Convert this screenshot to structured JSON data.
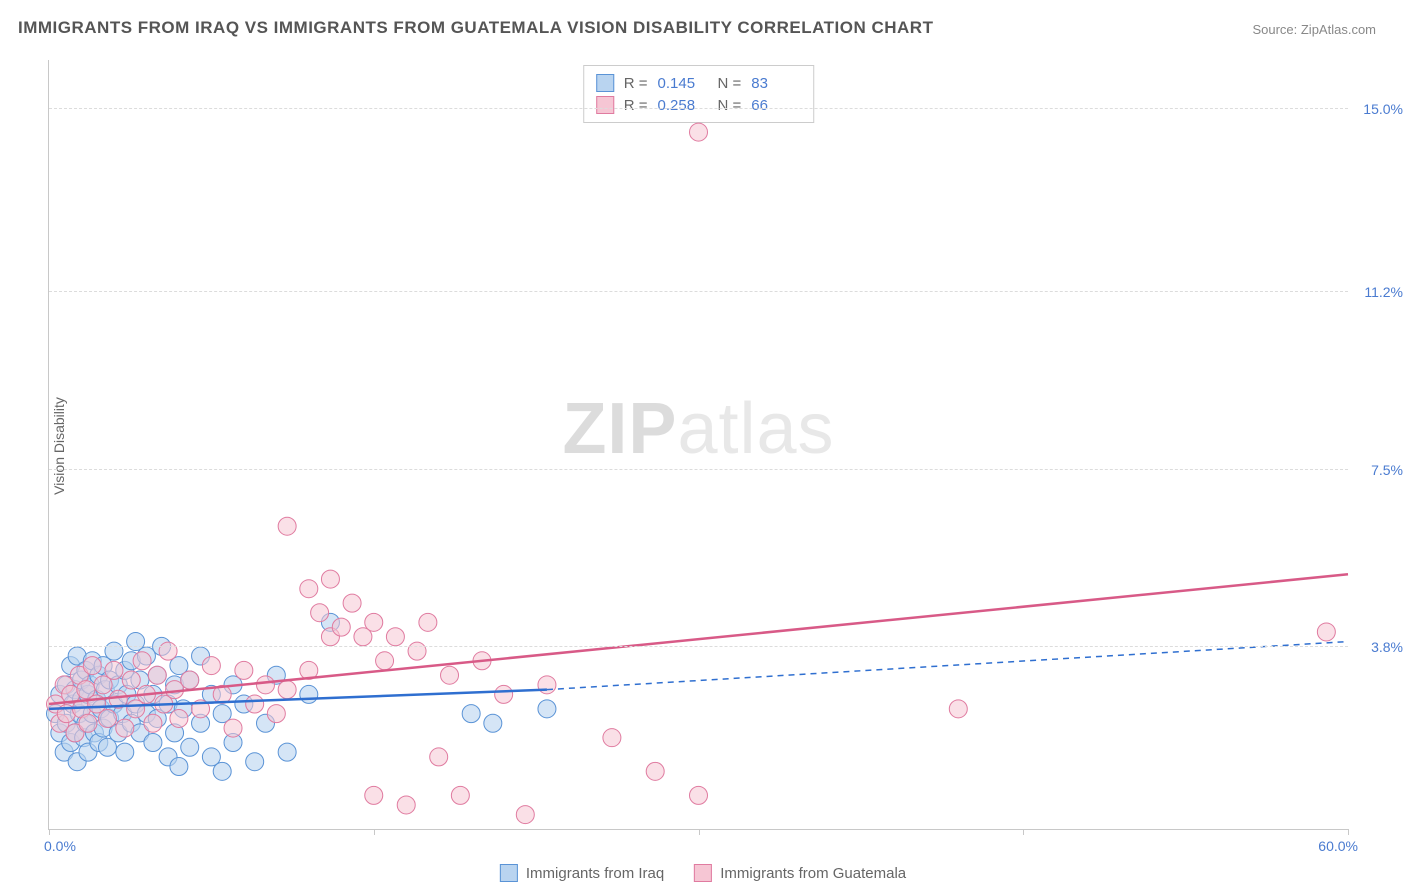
{
  "title": "IMMIGRANTS FROM IRAQ VS IMMIGRANTS FROM GUATEMALA VISION DISABILITY CORRELATION CHART",
  "source": "Source: ZipAtlas.com",
  "watermark_bold": "ZIP",
  "watermark_light": "atlas",
  "y_axis_label": "Vision Disability",
  "plot": {
    "x_min": 0.0,
    "x_max": 60.0,
    "y_min": 0.0,
    "y_max": 16.0,
    "x_tick_labels": {
      "left": "0.0%",
      "right": "60.0%"
    },
    "x_tick_positions": [
      0,
      15,
      30,
      45,
      60
    ],
    "y_gridlines": [
      {
        "value": 3.8,
        "label": "3.8%"
      },
      {
        "value": 7.5,
        "label": "7.5%"
      },
      {
        "value": 11.2,
        "label": "11.2%"
      },
      {
        "value": 15.0,
        "label": "15.0%"
      }
    ],
    "grid_color": "#dcdcdc",
    "background_color": "#ffffff"
  },
  "series": [
    {
      "name": "Immigrants from Iraq",
      "fill": "#b9d4f0",
      "stroke": "#5a93d6",
      "line_color": "#2f6fd0",
      "marker_radius": 9,
      "marker_opacity": 0.6,
      "R": "0.145",
      "N": "83",
      "trend": {
        "x1": 0,
        "y1": 2.5,
        "x2_solid": 23,
        "y2_solid": 2.9,
        "x2_dash": 60,
        "y2_dash": 3.9
      },
      "points": [
        [
          0.3,
          2.4
        ],
        [
          0.5,
          2.0
        ],
        [
          0.5,
          2.8
        ],
        [
          0.7,
          1.6
        ],
        [
          0.8,
          3.0
        ],
        [
          0.8,
          2.2
        ],
        [
          1.0,
          3.4
        ],
        [
          1.0,
          1.8
        ],
        [
          1.1,
          2.6
        ],
        [
          1.2,
          2.9
        ],
        [
          1.2,
          2.0
        ],
        [
          1.3,
          3.6
        ],
        [
          1.3,
          1.4
        ],
        [
          1.4,
          2.4
        ],
        [
          1.5,
          3.1
        ],
        [
          1.5,
          2.7
        ],
        [
          1.6,
          1.9
        ],
        [
          1.7,
          3.3
        ],
        [
          1.7,
          2.2
        ],
        [
          1.8,
          2.8
        ],
        [
          1.8,
          1.6
        ],
        [
          1.9,
          3.0
        ],
        [
          2.0,
          2.4
        ],
        [
          2.0,
          3.5
        ],
        [
          2.1,
          2.0
        ],
        [
          2.2,
          2.7
        ],
        [
          2.3,
          3.2
        ],
        [
          2.3,
          1.8
        ],
        [
          2.4,
          2.5
        ],
        [
          2.5,
          3.4
        ],
        [
          2.5,
          2.1
        ],
        [
          2.6,
          2.9
        ],
        [
          2.7,
          1.7
        ],
        [
          2.8,
          3.1
        ],
        [
          2.8,
          2.3
        ],
        [
          3.0,
          2.6
        ],
        [
          3.0,
          3.7
        ],
        [
          3.2,
          2.0
        ],
        [
          3.2,
          3.0
        ],
        [
          3.4,
          2.4
        ],
        [
          3.5,
          3.3
        ],
        [
          3.5,
          1.6
        ],
        [
          3.6,
          2.8
        ],
        [
          3.8,
          2.2
        ],
        [
          3.8,
          3.5
        ],
        [
          4.0,
          2.6
        ],
        [
          4.0,
          3.9
        ],
        [
          4.2,
          2.0
        ],
        [
          4.2,
          3.1
        ],
        [
          4.5,
          2.4
        ],
        [
          4.5,
          3.6
        ],
        [
          4.8,
          2.8
        ],
        [
          4.8,
          1.8
        ],
        [
          5.0,
          3.2
        ],
        [
          5.0,
          2.3
        ],
        [
          5.2,
          3.8
        ],
        [
          5.5,
          1.5
        ],
        [
          5.5,
          2.6
        ],
        [
          5.8,
          3.0
        ],
        [
          5.8,
          2.0
        ],
        [
          6.0,
          1.3
        ],
        [
          6.0,
          3.4
        ],
        [
          6.2,
          2.5
        ],
        [
          6.5,
          1.7
        ],
        [
          6.5,
          3.1
        ],
        [
          7.0,
          2.2
        ],
        [
          7.0,
          3.6
        ],
        [
          7.5,
          1.5
        ],
        [
          7.5,
          2.8
        ],
        [
          8.0,
          2.4
        ],
        [
          8.0,
          1.2
        ],
        [
          8.5,
          3.0
        ],
        [
          8.5,
          1.8
        ],
        [
          9.0,
          2.6
        ],
        [
          9.5,
          1.4
        ],
        [
          10.0,
          2.2
        ],
        [
          10.5,
          3.2
        ],
        [
          11.0,
          1.6
        ],
        [
          12.0,
          2.8
        ],
        [
          13.0,
          4.3
        ],
        [
          19.5,
          2.4
        ],
        [
          20.5,
          2.2
        ],
        [
          23.0,
          2.5
        ]
      ]
    },
    {
      "name": "Immigrants from Guatemala",
      "fill": "#f6c6d4",
      "stroke": "#e07ba0",
      "line_color": "#d85a87",
      "marker_radius": 9,
      "marker_opacity": 0.55,
      "R": "0.258",
      "N": "66",
      "trend": {
        "x1": 0,
        "y1": 2.6,
        "x2_solid": 60,
        "y2_solid": 5.3,
        "x2_dash": 60,
        "y2_dash": 5.3
      },
      "points": [
        [
          0.3,
          2.6
        ],
        [
          0.5,
          2.2
        ],
        [
          0.7,
          3.0
        ],
        [
          0.8,
          2.4
        ],
        [
          1.0,
          2.8
        ],
        [
          1.2,
          2.0
        ],
        [
          1.4,
          3.2
        ],
        [
          1.5,
          2.5
        ],
        [
          1.7,
          2.9
        ],
        [
          1.8,
          2.2
        ],
        [
          2.0,
          3.4
        ],
        [
          2.2,
          2.6
        ],
        [
          2.5,
          3.0
        ],
        [
          2.7,
          2.3
        ],
        [
          3.0,
          3.3
        ],
        [
          3.2,
          2.7
        ],
        [
          3.5,
          2.1
        ],
        [
          3.8,
          3.1
        ],
        [
          4.0,
          2.5
        ],
        [
          4.3,
          3.5
        ],
        [
          4.5,
          2.8
        ],
        [
          4.8,
          2.2
        ],
        [
          5.0,
          3.2
        ],
        [
          5.3,
          2.6
        ],
        [
          5.5,
          3.7
        ],
        [
          5.8,
          2.9
        ],
        [
          6.0,
          2.3
        ],
        [
          6.5,
          3.1
        ],
        [
          7.0,
          2.5
        ],
        [
          7.5,
          3.4
        ],
        [
          8.0,
          2.8
        ],
        [
          8.5,
          2.1
        ],
        [
          9.0,
          3.3
        ],
        [
          9.5,
          2.6
        ],
        [
          10.0,
          3.0
        ],
        [
          10.5,
          2.4
        ],
        [
          11.0,
          6.3
        ],
        [
          11.0,
          2.9
        ],
        [
          12.0,
          5.0
        ],
        [
          12.0,
          3.3
        ],
        [
          12.5,
          4.5
        ],
        [
          13.0,
          5.2
        ],
        [
          13.0,
          4.0
        ],
        [
          13.5,
          4.2
        ],
        [
          14.0,
          4.7
        ],
        [
          14.5,
          4.0
        ],
        [
          15.0,
          4.3
        ],
        [
          15.0,
          0.7
        ],
        [
          15.5,
          3.5
        ],
        [
          16.0,
          4.0
        ],
        [
          16.5,
          0.5
        ],
        [
          17.0,
          3.7
        ],
        [
          17.5,
          4.3
        ],
        [
          18.0,
          1.5
        ],
        [
          18.5,
          3.2
        ],
        [
          19.0,
          0.7
        ],
        [
          20.0,
          3.5
        ],
        [
          21.0,
          2.8
        ],
        [
          22.0,
          0.3
        ],
        [
          23.0,
          3.0
        ],
        [
          26.0,
          1.9
        ],
        [
          28.0,
          1.2
        ],
        [
          30.0,
          0.7
        ],
        [
          30.0,
          14.5
        ],
        [
          42.0,
          2.5
        ],
        [
          59.0,
          4.1
        ]
      ]
    }
  ],
  "stats_legend_labels": {
    "R": "R  =",
    "N": "N  ="
  },
  "bottom_legend": {
    "items": [
      "Immigrants from Iraq",
      "Immigrants from Guatemala"
    ]
  }
}
